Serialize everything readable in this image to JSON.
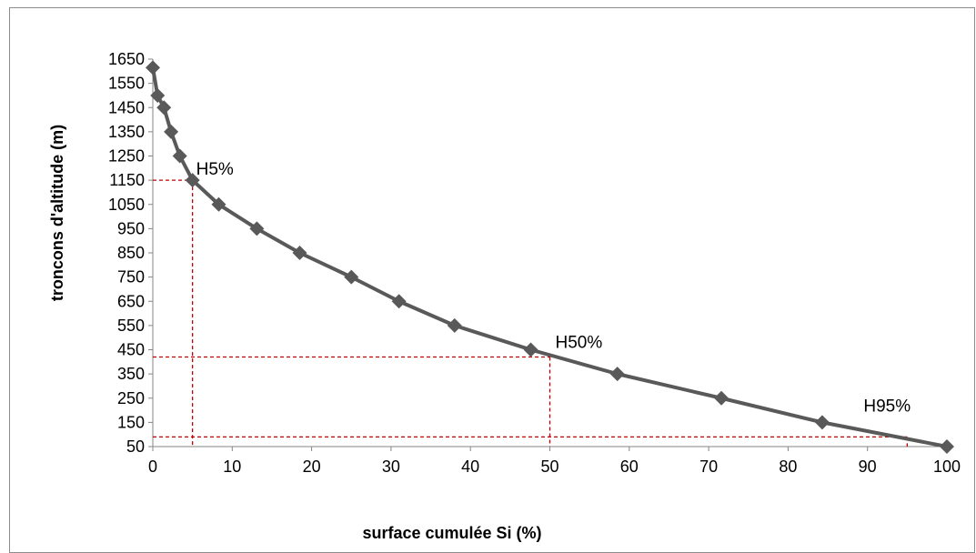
{
  "chart_data": {
    "type": "line",
    "xlabel": "surface cumulée Si (%)",
    "ylabel": "troncons d'altitude (m)",
    "xlim": [
      0,
      100
    ],
    "ylim": [
      50,
      1650
    ],
    "x_ticks": [
      0,
      10,
      20,
      30,
      40,
      50,
      60,
      70,
      80,
      90,
      100
    ],
    "y_ticks": [
      50,
      150,
      250,
      350,
      450,
      550,
      650,
      750,
      850,
      950,
      1050,
      1150,
      1250,
      1350,
      1450,
      1550,
      1650
    ],
    "series": [
      {
        "color": "#595959",
        "marker": "diamond",
        "points": [
          {
            "x": 0,
            "y": 1615
          },
          {
            "x": 0.6,
            "y": 1500
          },
          {
            "x": 1.4,
            "y": 1450
          },
          {
            "x": 2.3,
            "y": 1350
          },
          {
            "x": 3.4,
            "y": 1250
          },
          {
            "x": 5.0,
            "y": 1150
          },
          {
            "x": 8.3,
            "y": 1050
          },
          {
            "x": 13.1,
            "y": 950
          },
          {
            "x": 18.5,
            "y": 850
          },
          {
            "x": 25.0,
            "y": 750
          },
          {
            "x": 31.0,
            "y": 650
          },
          {
            "x": 38.0,
            "y": 550
          },
          {
            "x": 47.6,
            "y": 450
          },
          {
            "x": 58.5,
            "y": 350
          },
          {
            "x": 71.6,
            "y": 250
          },
          {
            "x": 84.3,
            "y": 150
          },
          {
            "x": 100,
            "y": 50
          }
        ]
      }
    ],
    "reference_lines": [
      {
        "label": "H5%",
        "x": 5,
        "y": 1150,
        "color": "#c00000"
      },
      {
        "label": "H50%",
        "x": 50,
        "y": 420,
        "color": "#c00000"
      },
      {
        "label": "H95%",
        "x": 95,
        "y": 90,
        "color": "#c00000"
      }
    ],
    "grid": false,
    "legend": "none"
  }
}
